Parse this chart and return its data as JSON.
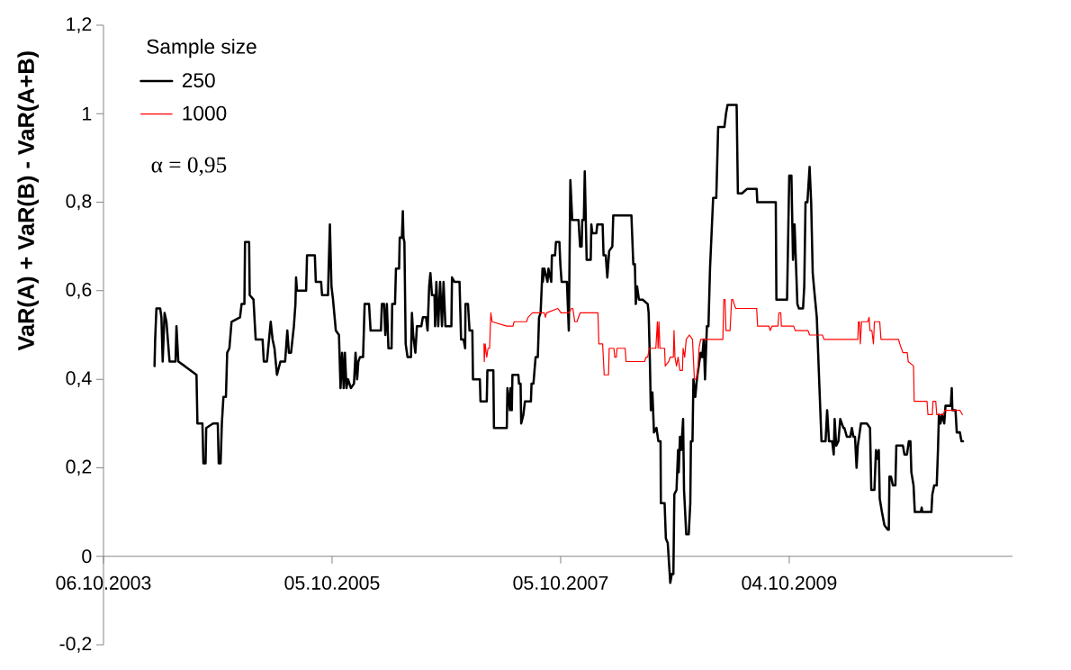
{
  "chart_data": {
    "type": "line",
    "ylabel": "VaR(A) + VaR(B) - VaR(A+B)",
    "legend_title": "Sample size",
    "legend": "top left",
    "annotations": [
      "α = 0,95"
    ],
    "xlim": [
      "2003-10-06",
      "2011-09-17"
    ],
    "xticks": [
      {
        "value": "2003-10-06",
        "label": "06.10.2003"
      },
      {
        "value": "2005-10-05",
        "label": "05.10.2005"
      },
      {
        "value": "2007-10-05",
        "label": "05.10.2007"
      },
      {
        "value": "2009-10-04",
        "label": "04.10.2009"
      }
    ],
    "ylim": [
      -0.2,
      1.2
    ],
    "yticks": [
      {
        "value": -0.2,
        "label": "-0,2"
      },
      0,
      {
        "value": 0.2,
        "label": "0,2"
      },
      {
        "value": 0.4,
        "label": "0,4"
      },
      {
        "value": 0.6,
        "label": "0,6"
      },
      {
        "value": 0.8,
        "label": "0,8"
      },
      1,
      {
        "value": 1.2,
        "label": "1,2"
      }
    ],
    "series": [
      {
        "name": "250",
        "color": "#000000",
        "x": [
          "2004-03-17",
          "2004-03-19",
          "2004-03-23",
          "2004-04-04",
          "2004-04-08",
          "2004-04-12",
          "2004-04-18",
          "2004-04-24",
          "2004-05-04",
          "2004-05-23",
          "2004-05-26",
          "2004-06-01",
          "2004-06-21",
          "2004-07-29",
          "2004-08-01",
          "2004-08-17",
          "2004-08-20",
          "2004-08-27",
          "2004-08-29",
          "2004-09-20",
          "2004-10-05",
          "2004-10-08",
          "2004-10-14",
          "2004-10-18",
          "2004-10-23",
          "2004-10-31",
          "2004-11-04",
          "2004-11-11",
          "2004-11-18",
          "2004-12-15",
          "2004-12-20",
          "2004-12-29",
          "2004-12-31",
          "2005-01-13",
          "2005-01-15",
          "2005-01-27",
          "2005-02-03",
          "2005-02-25",
          "2005-03-01",
          "2005-03-11",
          "2005-03-15",
          "2005-03-23",
          "2005-03-29",
          "2005-04-04",
          "2005-04-12",
          "2005-04-23",
          "2005-05-08",
          "2005-05-15",
          "2005-05-20",
          "2005-05-27",
          "2005-06-05",
          "2005-06-10",
          "2005-06-12",
          "2005-06-15",
          "2005-07-14",
          "2005-07-17",
          "2005-08-11",
          "2005-08-14",
          "2005-08-31",
          "2005-09-03",
          "2005-09-22",
          "2005-09-24",
          "2005-09-28",
          "2005-10-03",
          "2005-10-08",
          "2005-10-17",
          "2005-10-27",
          "2005-11-01",
          "2005-11-06",
          "2005-11-11",
          "2005-11-15",
          "2005-11-20",
          "2005-11-25",
          "2005-12-04",
          "2005-12-14",
          "2005-12-19",
          "2005-12-24",
          "2005-12-28",
          "2006-01-02",
          "2006-01-12",
          "2006-01-17",
          "2006-01-31",
          "2006-02-05",
          "2006-03-10",
          "2006-03-13",
          "2006-03-20",
          "2006-03-24",
          "2006-03-29",
          "2006-04-03",
          "2006-04-13",
          "2006-04-15",
          "2006-04-24",
          "2006-04-27",
          "2006-05-07",
          "2006-05-09",
          "2006-05-16",
          "2006-05-19",
          "2006-05-21",
          "2006-05-24",
          "2006-05-28",
          "2006-06-03",
          "2006-06-14",
          "2006-06-17",
          "2006-06-21",
          "2006-06-28",
          "2006-07-03",
          "2006-07-17",
          "2006-07-22",
          "2006-08-01",
          "2006-08-06",
          "2006-08-11",
          "2006-08-15",
          "2006-08-20",
          "2006-08-28",
          "2006-08-30",
          "2006-09-03",
          "2006-09-09",
          "2006-09-15",
          "2006-09-21",
          "2006-09-26",
          "2006-10-02",
          "2006-10-21",
          "2006-10-23",
          "2006-10-31",
          "2006-11-16",
          "2006-11-21",
          "2006-11-29",
          "2006-12-04",
          "2006-12-05",
          "2006-12-13",
          "2006-12-18",
          "2006-12-27",
          "2006-12-29",
          "2007-01-20",
          "2007-01-22",
          "2007-02-11",
          "2007-02-13",
          "2007-03-04",
          "2007-03-06",
          "2007-04-16",
          "2007-04-18",
          "2007-04-26",
          "2007-04-28",
          "2007-05-02",
          "2007-05-04",
          "2007-05-23",
          "2007-05-25",
          "2007-05-30",
          "2007-06-01",
          "2007-06-08",
          "2007-06-13",
          "2007-07-02",
          "2007-07-04",
          "2007-07-10",
          "2007-07-17",
          "2007-07-24",
          "2007-07-28",
          "2007-08-02",
          "2007-08-08",
          "2007-08-09",
          "2007-08-14",
          "2007-08-24",
          "2007-08-27",
          "2007-09-05",
          "2007-09-07",
          "2007-09-17",
          "2007-09-20",
          "2007-10-01",
          "2007-10-04",
          "2007-10-08",
          "2007-10-25",
          "2007-10-31",
          "2007-11-05",
          "2007-11-11",
          "2007-12-01",
          "2007-12-06",
          "2007-12-11",
          "2007-12-13",
          "2007-12-18",
          "2007-12-21",
          "2007-12-27",
          "2008-01-09",
          "2008-01-11",
          "2008-01-14",
          "2008-01-27",
          "2008-01-30",
          "2008-02-16",
          "2008-02-19",
          "2008-02-26",
          "2008-03-02",
          "2008-03-08",
          "2008-03-18",
          "2008-03-21",
          "2008-05-18",
          "2008-05-24",
          "2008-05-29",
          "2008-06-01",
          "2008-06-05",
          "2008-06-11",
          "2008-06-23",
          "2008-07-09",
          "2008-07-12",
          "2008-07-16",
          "2008-07-19",
          "2008-07-24",
          "2008-07-29",
          "2008-08-06",
          "2008-08-12",
          "2008-08-19",
          "2008-08-20",
          "2008-09-01",
          "2008-09-05",
          "2008-09-11",
          "2008-09-19",
          "2008-09-24",
          "2008-09-29",
          "2008-10-02",
          "2008-10-09",
          "2008-10-14",
          "2008-10-16",
          "2008-10-20",
          "2008-10-24",
          "2008-10-30",
          "2008-11-02",
          "2008-11-09",
          "2008-11-17",
          "2008-11-22",
          "2008-11-24",
          "2008-11-29",
          "2008-12-02",
          "2008-12-08",
          "2008-12-13",
          "2008-12-25",
          "2008-12-30",
          "2009-01-04",
          "2009-01-08",
          "2009-01-14",
          "2009-01-19",
          "2009-01-24",
          "2009-02-03",
          "2009-02-13",
          "2009-02-19",
          "2009-03-11",
          "2009-03-16",
          "2009-03-21",
          "2009-04-19",
          "2009-04-23",
          "2009-05-06",
          "2009-05-22",
          "2009-06-22",
          "2009-06-24",
          "2009-08-22",
          "2009-08-24",
          "2009-09-17",
          "2009-09-20",
          "2009-09-27",
          "2009-10-04",
          "2009-10-11",
          "2009-10-16",
          "2009-10-21",
          "2009-10-25",
          "2009-10-30",
          "2009-11-04",
          "2009-11-17",
          "2009-11-21",
          "2009-11-25",
          "2009-12-01",
          "2009-12-08",
          "2009-12-13",
          "2009-12-18",
          "2009-12-23",
          "2009-12-31",
          "2010-01-08",
          "2010-01-15",
          "2010-01-28",
          "2010-02-02",
          "2010-02-08",
          "2010-02-18",
          "2010-02-23",
          "2010-02-26",
          "2010-03-03",
          "2010-03-10",
          "2010-03-16",
          "2010-03-26",
          "2010-03-29",
          "2010-04-06",
          "2010-04-17",
          "2010-04-22",
          "2010-04-27",
          "2010-05-02",
          "2010-05-07",
          "2010-05-11",
          "2010-05-21",
          "2010-06-04",
          "2010-06-09",
          "2010-06-19",
          "2010-06-23",
          "2010-07-03",
          "2010-07-08",
          "2010-07-11",
          "2010-07-17",
          "2010-07-20",
          "2010-07-27",
          "2010-08-04",
          "2010-08-15",
          "2010-08-18",
          "2010-08-20",
          "2010-08-25",
          "2010-08-31",
          "2010-09-08",
          "2010-09-11",
          "2010-10-02",
          "2010-10-07",
          "2010-10-15",
          "2010-10-21",
          "2010-10-26",
          "2010-10-29",
          "2010-11-05",
          "2010-11-09",
          "2010-11-28",
          "2010-12-01",
          "2010-12-03",
          "2011-01-01",
          "2011-01-04",
          "2011-01-10",
          "2011-01-18",
          "2011-01-22",
          "2011-01-25",
          "2011-01-30",
          "2011-02-04",
          "2011-02-11",
          "2011-02-15",
          "2011-03-04",
          "2011-03-07",
          "2011-03-09",
          "2011-03-19",
          "2011-03-23",
          "2011-04-02",
          "2011-04-07",
          "2011-04-12"
        ],
        "values": [
          0.43,
          0.49,
          0.56,
          0.56,
          0.54,
          0.44,
          0.55,
          0.53,
          0.44,
          0.44,
          0.52,
          0.44,
          0.43,
          0.41,
          0.3,
          0.3,
          0.21,
          0.21,
          0.29,
          0.3,
          0.3,
          0.21,
          0.21,
          0.3,
          0.36,
          0.36,
          0.46,
          0.47,
          0.53,
          0.54,
          0.57,
          0.57,
          0.71,
          0.71,
          0.59,
          0.58,
          0.49,
          0.49,
          0.44,
          0.44,
          0.47,
          0.53,
          0.49,
          0.47,
          0.41,
          0.44,
          0.44,
          0.51,
          0.46,
          0.46,
          0.52,
          0.57,
          0.63,
          0.6,
          0.6,
          0.68,
          0.68,
          0.62,
          0.62,
          0.59,
          0.59,
          0.65,
          0.75,
          0.61,
          0.58,
          0.51,
          0.5,
          0.38,
          0.46,
          0.38,
          0.46,
          0.38,
          0.4,
          0.38,
          0.39,
          0.46,
          0.4,
          0.44,
          0.45,
          0.45,
          0.57,
          0.57,
          0.51,
          0.51,
          0.57,
          0.57,
          0.5,
          0.57,
          0.47,
          0.47,
          0.57,
          0.57,
          0.65,
          0.65,
          0.72,
          0.72,
          0.78,
          0.72,
          0.71,
          0.48,
          0.45,
          0.45,
          0.55,
          0.5,
          0.46,
          0.52,
          0.52,
          0.54,
          0.54,
          0.51,
          0.61,
          0.64,
          0.59,
          0.59,
          0.52,
          0.62,
          0.52,
          0.62,
          0.52,
          0.62,
          0.52,
          0.52,
          0.63,
          0.62,
          0.62,
          0.49,
          0.49,
          0.47,
          0.57,
          0.57,
          0.51,
          0.51,
          0.4,
          0.4,
          0.35,
          0.35,
          0.42,
          0.42,
          0.29,
          0.29,
          0.38,
          0.33,
          0.38,
          0.33,
          0.41,
          0.41,
          0.39,
          0.39,
          0.3,
          0.32,
          0.35,
          0.35,
          0.39,
          0.39,
          0.45,
          0.45,
          0.54,
          0.55,
          0.65,
          0.62,
          0.65,
          0.62,
          0.65,
          0.62,
          0.68,
          0.68,
          0.71,
          0.71,
          0.66,
          0.62,
          0.62,
          0.51,
          0.85,
          0.76,
          0.76,
          0.7,
          0.7,
          0.76,
          0.76,
          0.87,
          0.67,
          0.67,
          0.75,
          0.73,
          0.73,
          0.75,
          0.75,
          0.68,
          0.68,
          0.63,
          0.69,
          0.7,
          0.77,
          0.77,
          0.66,
          0.66,
          0.57,
          0.61,
          0.58,
          0.58,
          0.57,
          0.55,
          0.44,
          0.33,
          0.37,
          0.28,
          0.29,
          0.26,
          0.26,
          0.12,
          0.12,
          0.04,
          0.03,
          -0.06,
          -0.04,
          -0.04,
          0.14,
          0.15,
          0.24,
          0.19,
          0.27,
          0.24,
          0.31,
          0.15,
          0.05,
          0.05,
          0.12,
          0.26,
          0.26,
          0.4,
          0.36,
          0.4,
          0.46,
          0.45,
          0.49,
          0.4,
          0.52,
          0.52,
          0.65,
          0.81,
          0.81,
          0.97,
          0.97,
          1.0,
          1.02,
          1.02,
          0.82,
          0.82,
          0.83,
          0.83,
          0.8,
          0.8,
          0.58,
          0.58,
          0.58,
          0.58,
          0.86,
          0.86,
          0.67,
          0.75,
          0.67,
          0.57,
          0.56,
          0.56,
          0.61,
          0.8,
          0.8,
          0.88,
          0.8,
          0.64,
          0.6,
          0.54,
          0.39,
          0.26,
          0.26,
          0.33,
          0.26,
          0.26,
          0.23,
          0.31,
          0.25,
          0.26,
          0.31,
          0.29,
          0.29,
          0.27,
          0.27,
          0.29,
          0.27,
          0.27,
          0.2,
          0.25,
          0.3,
          0.3,
          0.3,
          0.29,
          0.15,
          0.15,
          0.24,
          0.22,
          0.24,
          0.13,
          0.1,
          0.07,
          0.06,
          0.06,
          0.18,
          0.18,
          0.16,
          0.16,
          0.25,
          0.25,
          0.23,
          0.23,
          0.26,
          0.26,
          0.19,
          0.16,
          0.1,
          0.1,
          0.11,
          0.1,
          0.1,
          0.14,
          0.16,
          0.16,
          0.24,
          0.32,
          0.3,
          0.32,
          0.3,
          0.34,
          0.34,
          0.38,
          0.33,
          0.33,
          0.28,
          0.28,
          0.26,
          0.26
        ]
      },
      {
        "name": "1000",
        "color": "#ff0000",
        "x": [
          "2007-02-02",
          "2007-02-03",
          "2007-02-06",
          "2007-02-09",
          "2007-02-11",
          "2007-02-15",
          "2007-02-20",
          "2007-02-24",
          "2007-02-28",
          "2007-04-16",
          "2007-04-26",
          "2007-05-06",
          "2007-05-09",
          "2007-06-03",
          "2007-06-13",
          "2007-06-18",
          "2007-06-23",
          "2007-07-07",
          "2007-08-14",
          "2007-08-17",
          "2007-08-21",
          "2007-09-26",
          "2007-10-06",
          "2007-10-31",
          "2007-11-09",
          "2007-11-13",
          "2007-11-19",
          "2007-11-26",
          "2007-12-06",
          "2008-02-01",
          "2008-02-04",
          "2008-02-16",
          "2008-02-21",
          "2008-03-06",
          "2008-03-08",
          "2008-03-23",
          "2008-03-26",
          "2008-03-31",
          "2008-04-02",
          "2008-04-28",
          "2008-05-01",
          "2008-06-29",
          "2008-07-04",
          "2008-07-09",
          "2008-07-14",
          "2008-08-04",
          "2008-08-09",
          "2008-08-11",
          "2008-08-14",
          "2008-08-17",
          "2008-09-01",
          "2008-09-03",
          "2008-09-14",
          "2008-09-19",
          "2008-09-29",
          "2008-10-01",
          "2008-10-04",
          "2008-10-09",
          "2008-10-14",
          "2008-10-20",
          "2008-10-28",
          "2008-10-30",
          "2008-11-04",
          "2008-11-09",
          "2008-11-19",
          "2008-11-29",
          "2008-12-05",
          "2008-12-10",
          "2008-12-15",
          "2008-12-20",
          "2008-12-25",
          "2009-01-04",
          "2009-01-14",
          "2009-01-29",
          "2009-02-03",
          "2009-03-06",
          "2009-03-09",
          "2009-03-13",
          "2009-03-16",
          "2009-03-29",
          "2009-04-03",
          "2009-04-07",
          "2009-04-11",
          "2009-04-16",
          "2009-06-22",
          "2009-06-25",
          "2009-07-28",
          "2009-07-31",
          "2009-08-04",
          "2009-08-10",
          "2009-08-20",
          "2009-08-29",
          "2009-09-01",
          "2009-09-07",
          "2009-09-09",
          "2009-10-18",
          "2009-10-23",
          "2009-11-07",
          "2009-11-10",
          "2009-12-03",
          "2009-12-08",
          "2010-01-03",
          "2010-01-08",
          "2010-01-18",
          "2010-01-23",
          "2010-03-05",
          "2010-04-08",
          "2010-05-11",
          "2010-05-13",
          "2010-05-16",
          "2010-05-19",
          "2010-05-23",
          "2010-05-28",
          "2010-06-12",
          "2010-06-16",
          "2010-06-19",
          "2010-06-25",
          "2010-06-30",
          "2010-07-03",
          "2010-07-13",
          "2010-07-20",
          "2010-07-24",
          "2010-08-10",
          "2010-09-18",
          "2010-09-22",
          "2010-10-02",
          "2010-10-16",
          "2010-10-19",
          "2010-11-05",
          "2010-11-07",
          "2010-12-18",
          "2010-12-21",
          "2011-01-04",
          "2011-01-06",
          "2011-01-15",
          "2011-01-18",
          "2011-02-08",
          "2011-02-13",
          "2011-04-02",
          "2011-04-10"
        ],
        "values": [
          0.48,
          0.44,
          0.48,
          0.46,
          0.45,
          0.47,
          0.47,
          0.55,
          0.53,
          0.52,
          0.52,
          0.52,
          0.53,
          0.53,
          0.53,
          0.53,
          0.54,
          0.55,
          0.55,
          0.54,
          0.55,
          0.56,
          0.55,
          0.55,
          0.56,
          0.56,
          0.53,
          0.53,
          0.55,
          0.55,
          0.48,
          0.48,
          0.41,
          0.41,
          0.47,
          0.47,
          0.45,
          0.45,
          0.47,
          0.47,
          0.44,
          0.44,
          0.45,
          0.45,
          0.47,
          0.47,
          0.53,
          0.47,
          0.53,
          0.47,
          0.47,
          0.43,
          0.44,
          0.45,
          0.45,
          0.51,
          0.45,
          0.43,
          0.45,
          0.42,
          0.42,
          0.47,
          0.45,
          0.49,
          0.5,
          0.49,
          0.4,
          0.4,
          0.41,
          0.47,
          0.49,
          0.49,
          0.49,
          0.49,
          0.49,
          0.49,
          0.58,
          0.58,
          0.51,
          0.51,
          0.58,
          0.58,
          0.57,
          0.56,
          0.56,
          0.52,
          0.52,
          0.52,
          0.51,
          0.52,
          0.52,
          0.52,
          0.55,
          0.55,
          0.52,
          0.52,
          0.51,
          0.51,
          0.51,
          0.51,
          0.5,
          0.5,
          0.5,
          0.5,
          0.49,
          0.49,
          0.49,
          0.49,
          0.53,
          0.53,
          0.48,
          0.53,
          0.53,
          0.53,
          0.54,
          0.51,
          0.51,
          0.48,
          0.53,
          0.53,
          0.53,
          0.49,
          0.49,
          0.49,
          0.48,
          0.46,
          0.46,
          0.44,
          0.43,
          0.35,
          0.35,
          0.32,
          0.32,
          0.35,
          0.35,
          0.32,
          0.32,
          0.33,
          0.33,
          0.32
        ]
      }
    ]
  }
}
